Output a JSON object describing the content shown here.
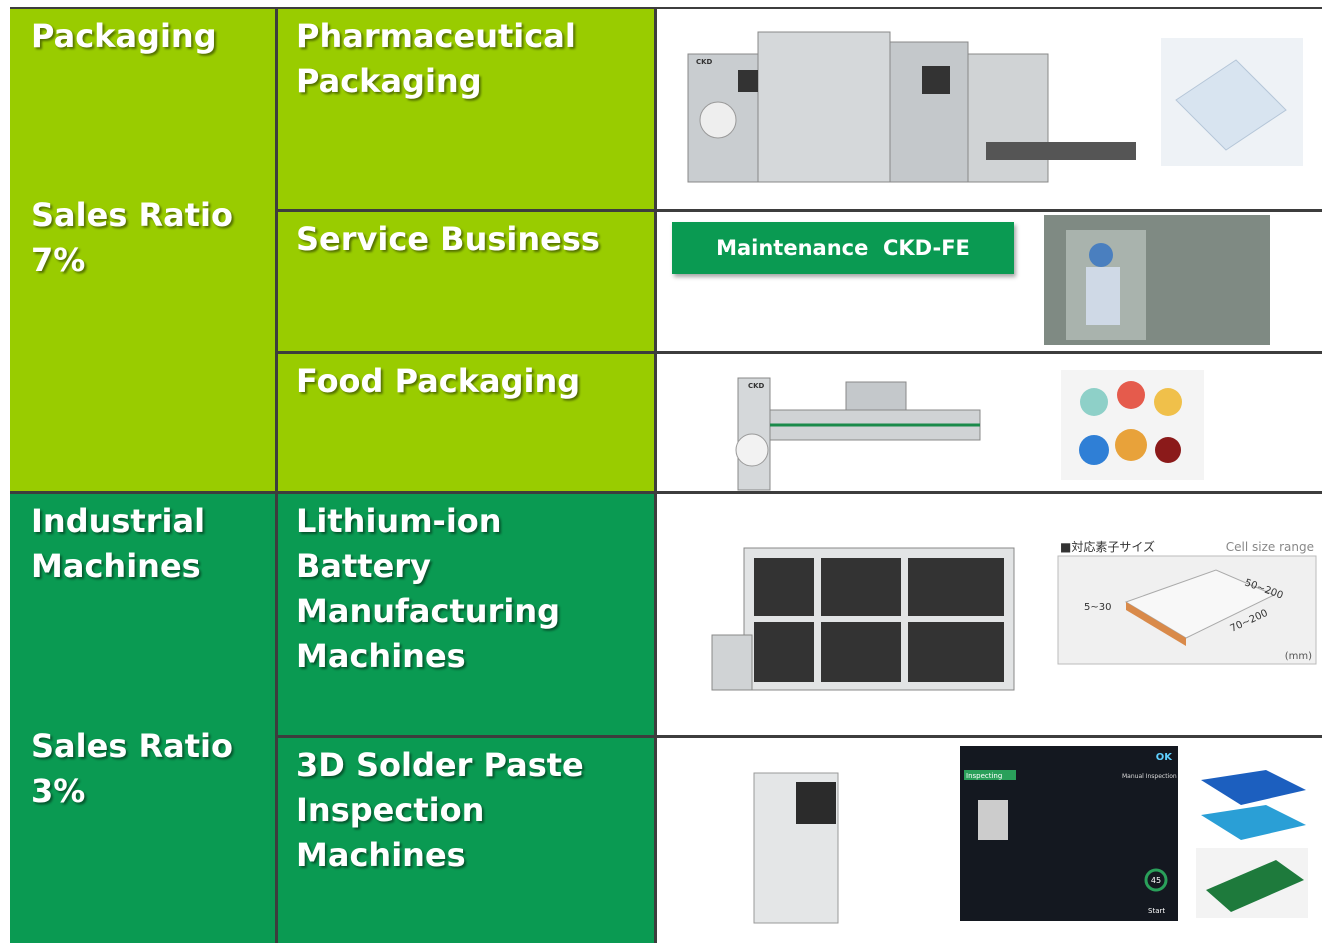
{
  "segments": [
    {
      "name": "Packaging",
      "sales_ratio_label": "Sales Ratio",
      "sales_ratio": "7%",
      "businesses": [
        {
          "name": "Pharmaceutical Packaging",
          "machine_brand": "CKD"
        },
        {
          "name": "Service Business",
          "badge": "Maintenance  CKD-FE"
        },
        {
          "name": "Food Packaging",
          "machine_brand": "CKD"
        }
      ]
    },
    {
      "name": "Industrial Machines",
      "sales_ratio_label": "Sales Ratio",
      "sales_ratio": "3%",
      "businesses": [
        {
          "name": "Lithium-ion Battery Manufacturing Machines",
          "diagram": {
            "title": "■対応素子サイズ",
            "subtitle": "Cell size range",
            "length": "50~200",
            "height": "5~30",
            "width": "70~200",
            "unit": "(mm)"
          }
        },
        {
          "name": "3D Solder Paste Inspection Machines",
          "screen": {
            "status": "OK",
            "tab": "Inspecting",
            "panel": "Manual Inspection",
            "count": "45",
            "button": "Start"
          }
        }
      ]
    }
  ]
}
